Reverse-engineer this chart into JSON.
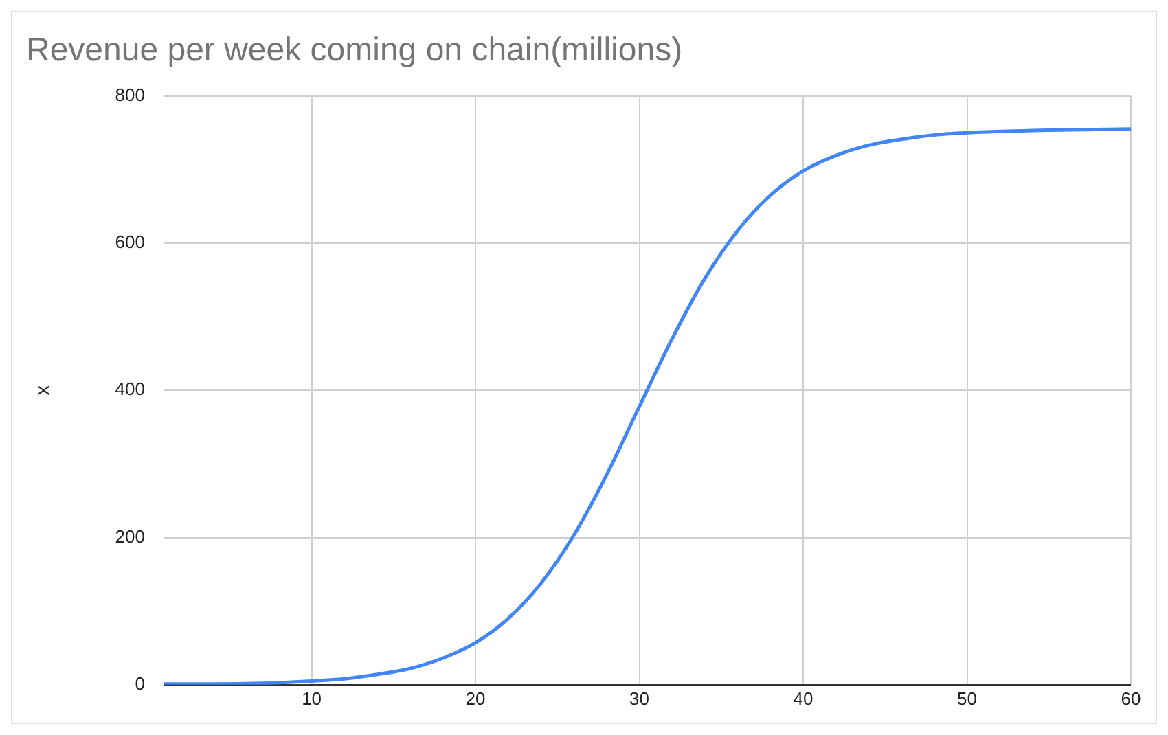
{
  "chart_data": {
    "type": "line",
    "title": "Revenue per week coming on chain(millions)",
    "ylabel": "x",
    "x": [
      1,
      4,
      7,
      10,
      12,
      14,
      16,
      18,
      20,
      22,
      24,
      26,
      28,
      30,
      32,
      34,
      36,
      38,
      40,
      42,
      44,
      46,
      48,
      50,
      54,
      60
    ],
    "series": [
      {
        "color": "#4285f4",
        "values": [
          1,
          1,
          2,
          5,
          8,
          14,
          22,
          36,
          57,
          90,
          138,
          203,
          285,
          378,
          470,
          552,
          617,
          665,
          698,
          719,
          733,
          741,
          747,
          750,
          753,
          755
        ]
      }
    ],
    "xlim": [
      1,
      60
    ],
    "xticks": [
      10,
      20,
      30,
      40,
      50,
      60
    ],
    "ylim": [
      0,
      800
    ],
    "yticks": [
      0,
      200,
      400,
      600,
      800
    ],
    "grid": true,
    "marker": "none",
    "line_style": "solid",
    "legend": false
  }
}
